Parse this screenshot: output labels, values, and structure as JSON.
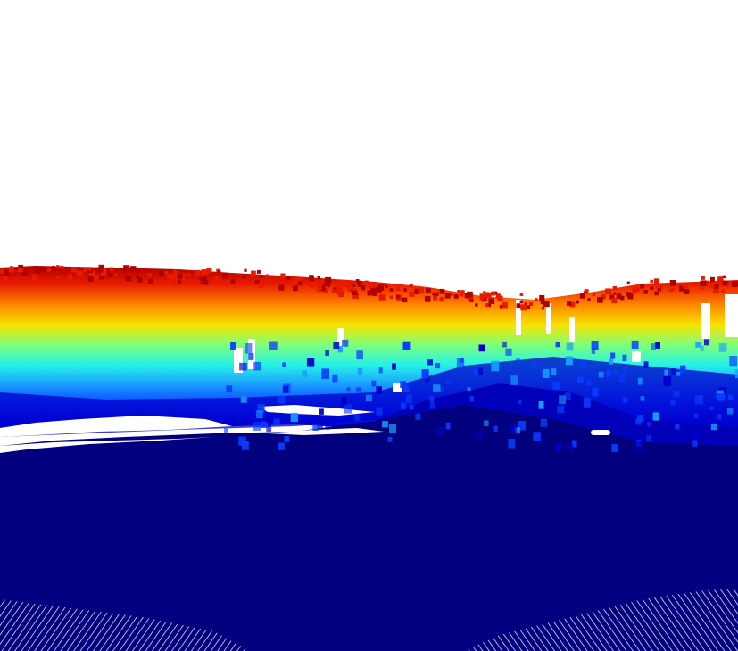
{
  "scene": {
    "kind": "point-cloud-render",
    "colormap": "jet",
    "background": "#ffffff",
    "colors": {
      "ground": "#02007f",
      "deep_blue": "#0000cc",
      "blue": "#0a3cff",
      "light_blue": "#1a9dff",
      "cyan": "#26f2e6",
      "green": "#7dff7a",
      "yellow": "#f7e400",
      "orange": "#ff8a00",
      "red": "#e81a00",
      "dark_red": "#b00000",
      "scanline": "#ffffff"
    }
  }
}
